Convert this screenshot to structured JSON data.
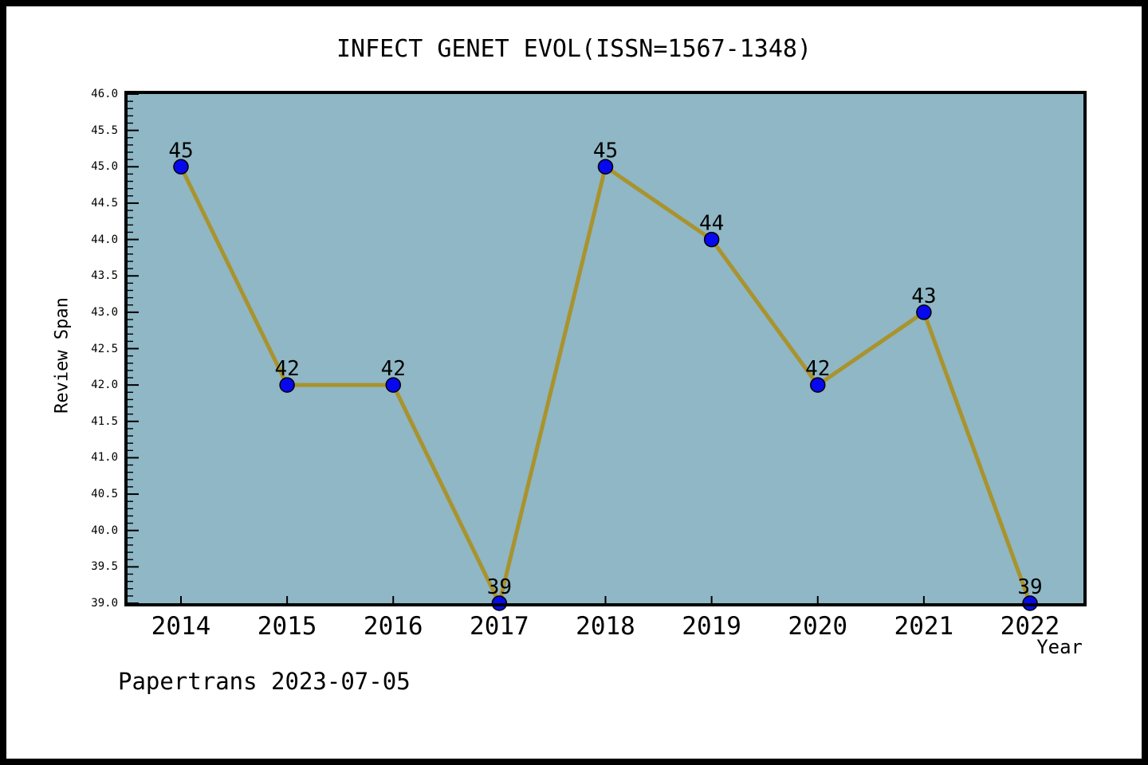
{
  "chart_data": {
    "type": "line",
    "title": "INFECT GENET EVOL(ISSN=1567-1348)",
    "xlabel": "Year",
    "ylabel": "Review Span",
    "x": [
      "2014",
      "2015",
      "2016",
      "2017",
      "2018",
      "2019",
      "2020",
      "2021",
      "2022"
    ],
    "series": [
      {
        "name": "Review Span",
        "values": [
          45,
          42,
          42,
          39,
          45,
          44,
          42,
          43,
          39
        ]
      }
    ],
    "point_labels": [
      "45",
      "42",
      "42",
      "39",
      "45",
      "44",
      "42",
      "43",
      "39"
    ],
    "ylim": [
      39.0,
      46.0
    ],
    "ytick_step": 0.5,
    "yminor_step": 0.1,
    "ytick_labels": [
      "39.0",
      "39.5",
      "40.0",
      "40.5",
      "41.0",
      "41.5",
      "42.0",
      "42.5",
      "43.0",
      "43.5",
      "44.0",
      "44.5",
      "45.0",
      "45.5",
      "46.0"
    ],
    "grid": false,
    "legend": "none",
    "annotation": "Papertrans 2023-07-05",
    "colors": {
      "line": "#a9932e",
      "marker_fill": "#0808ee",
      "marker_edge": "#000000",
      "plot_background": "#8fb7c5",
      "page_background": "#ffffff",
      "frame": "#000000",
      "text": "#000000"
    }
  }
}
